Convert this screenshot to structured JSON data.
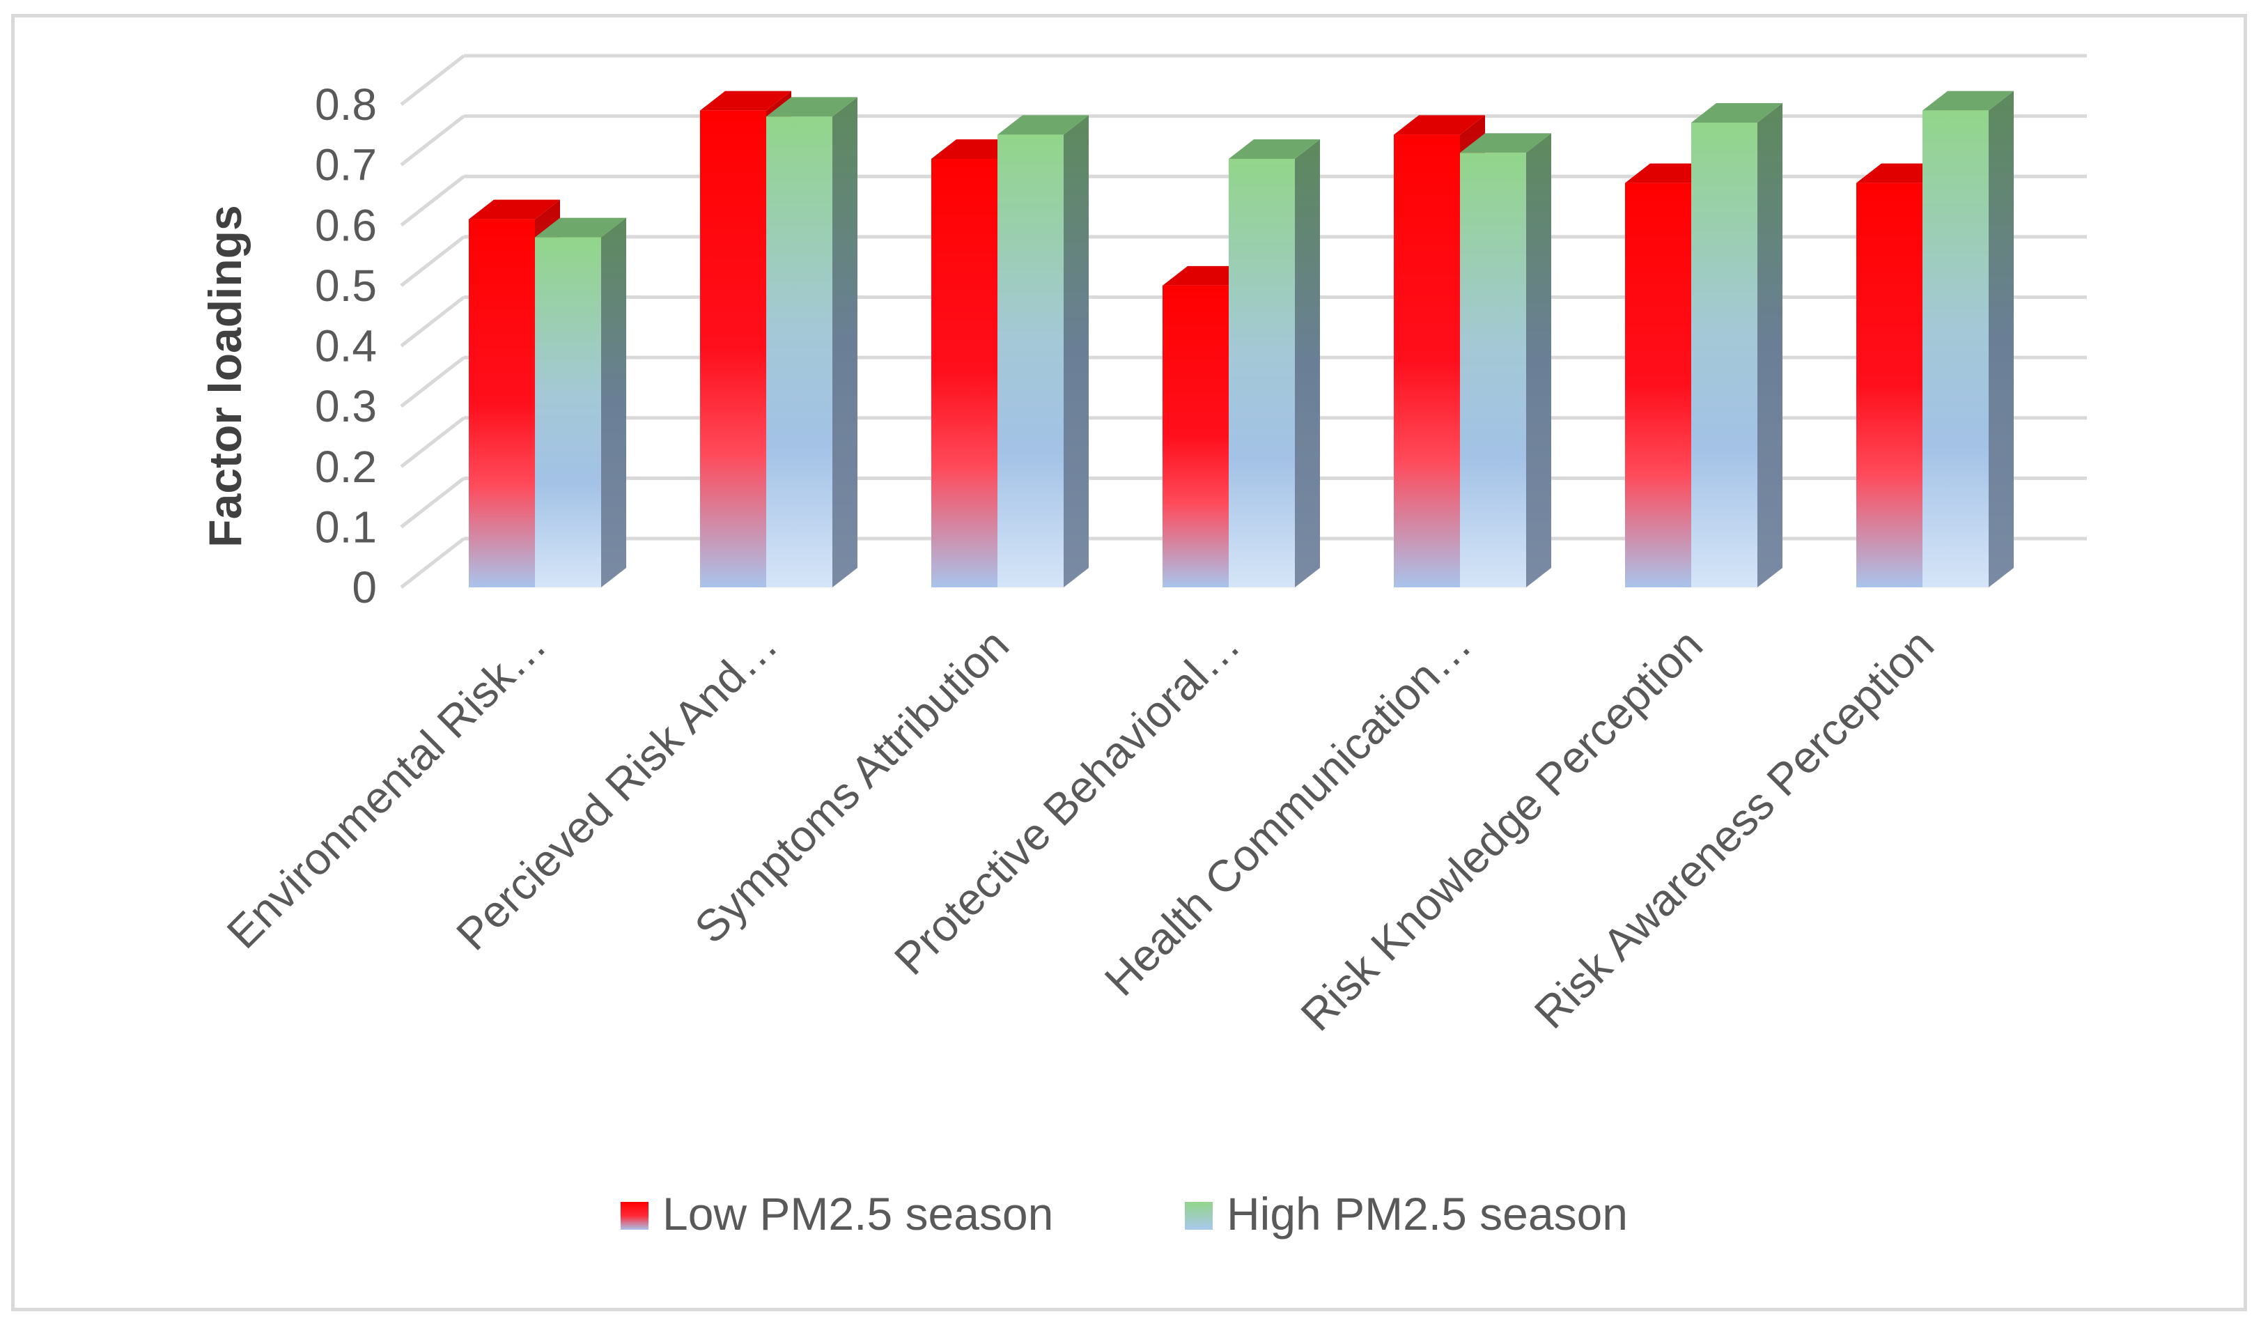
{
  "chart_data": {
    "type": "bar",
    "title": "",
    "xlabel": "",
    "ylabel": "Factor loadings",
    "ylim": [
      0,
      0.8
    ],
    "yticks": [
      "0",
      "0.1",
      "0.2",
      "0.3",
      "0.4",
      "0.5",
      "0.6",
      "0.7",
      "0.8"
    ],
    "grid": true,
    "legend_position": "bottom",
    "categories": [
      "Environmental Risk…",
      "Percieved Risk And…",
      "Symptoms Attribution",
      "Protective Behavioral…",
      "Health Communication…",
      "Risk Knowledge Perception",
      "Risk Awareness Perception"
    ],
    "series": [
      {
        "name": "Low PM2.5 season",
        "values": [
          0.61,
          0.79,
          0.71,
          0.5,
          0.75,
          0.67,
          0.67
        ]
      },
      {
        "name": "High PM2.5 season",
        "values": [
          0.58,
          0.78,
          0.75,
          0.71,
          0.72,
          0.77,
          0.79
        ]
      }
    ],
    "colors": {
      "low_top": "#ff0000",
      "low_mid": "#ff3b4a",
      "low_bottom": "#a9c4ec",
      "high_top": "#8fd38a",
      "high_mid": "#a3c2e6",
      "high_bottom": "#d4e4f7",
      "grid": "#d9d9d9"
    }
  }
}
